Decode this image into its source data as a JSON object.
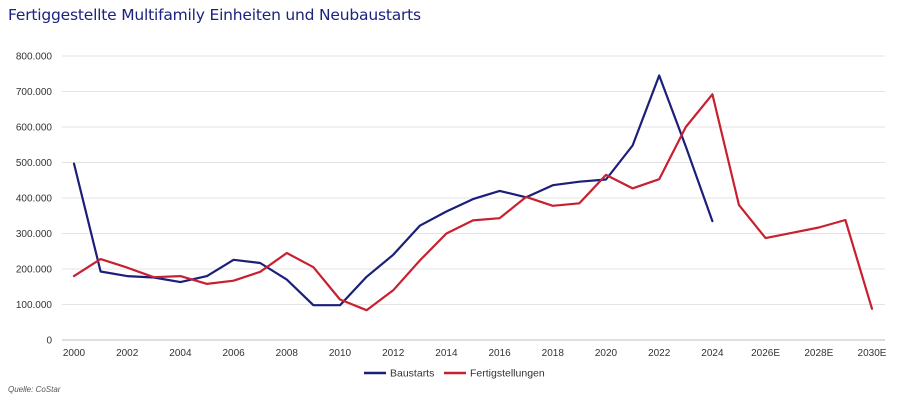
{
  "colors": {
    "baustarts": "#1b1f7a",
    "fertigstellungen": "#c8202f",
    "grid": "#e3e3e3",
    "title": "#1a237e"
  },
  "chart_data": {
    "type": "line",
    "title": "Fertiggestellte Multifamily Einheiten und Neubaustarts",
    "xlabel": "",
    "ylabel": "",
    "x": [
      2000,
      2001,
      2002,
      2003,
      2004,
      2005,
      2006,
      2007,
      2008,
      2009,
      2010,
      2011,
      2012,
      2013,
      2014,
      2015,
      2016,
      2017,
      2018,
      2019,
      2020,
      2021,
      2022,
      2023,
      2024,
      2025,
      2026,
      2027,
      2028,
      2029,
      2030
    ],
    "x_tick_labels": [
      {
        "x": 2000,
        "label": "2000"
      },
      {
        "x": 2002,
        "label": "2002"
      },
      {
        "x": 2004,
        "label": "2004"
      },
      {
        "x": 2006,
        "label": "2006"
      },
      {
        "x": 2008,
        "label": "2008"
      },
      {
        "x": 2010,
        "label": "2010"
      },
      {
        "x": 2012,
        "label": "2012"
      },
      {
        "x": 2014,
        "label": "2014"
      },
      {
        "x": 2016,
        "label": "2016"
      },
      {
        "x": 2018,
        "label": "2018"
      },
      {
        "x": 2020,
        "label": "2020"
      },
      {
        "x": 2022,
        "label": "2022"
      },
      {
        "x": 2024,
        "label": "2024"
      },
      {
        "x": 2026,
        "label": "2026E"
      },
      {
        "x": 2028,
        "label": "2028E"
      },
      {
        "x": 2030,
        "label": "2030E"
      }
    ],
    "ylim": [
      0,
      800000
    ],
    "y_ticks": [
      0,
      100000,
      200000,
      300000,
      400000,
      500000,
      600000,
      700000,
      800000
    ],
    "y_tick_labels": [
      "0",
      "100.000",
      "200.000",
      "300.000",
      "400.000",
      "500.000",
      "600.000",
      "700.000",
      "800.000"
    ],
    "grid": true,
    "legend_position": "bottom",
    "series": [
      {
        "name": "Baustarts",
        "color": "#1b1f7a",
        "values": [
          497000,
          193000,
          180000,
          176000,
          163000,
          180000,
          226000,
          217000,
          170000,
          98000,
          98000,
          178000,
          240000,
          322000,
          362000,
          397000,
          420000,
          402000,
          436000,
          446000,
          452000,
          548000,
          745000,
          545000,
          335000,
          null,
          null,
          null,
          null,
          null,
          null
        ]
      },
      {
        "name": "Fertigstellungen",
        "color": "#c8202f",
        "values": [
          180000,
          228000,
          204000,
          177000,
          180000,
          158000,
          167000,
          192000,
          245000,
          205000,
          114000,
          84000,
          140000,
          224000,
          300000,
          337000,
          343000,
          403000,
          378000,
          385000,
          465000,
          427000,
          453000,
          600000,
          692000,
          380000,
          287000,
          302000,
          317000,
          338000,
          88000
        ]
      }
    ]
  },
  "source_label": "Quelle: CoStar"
}
